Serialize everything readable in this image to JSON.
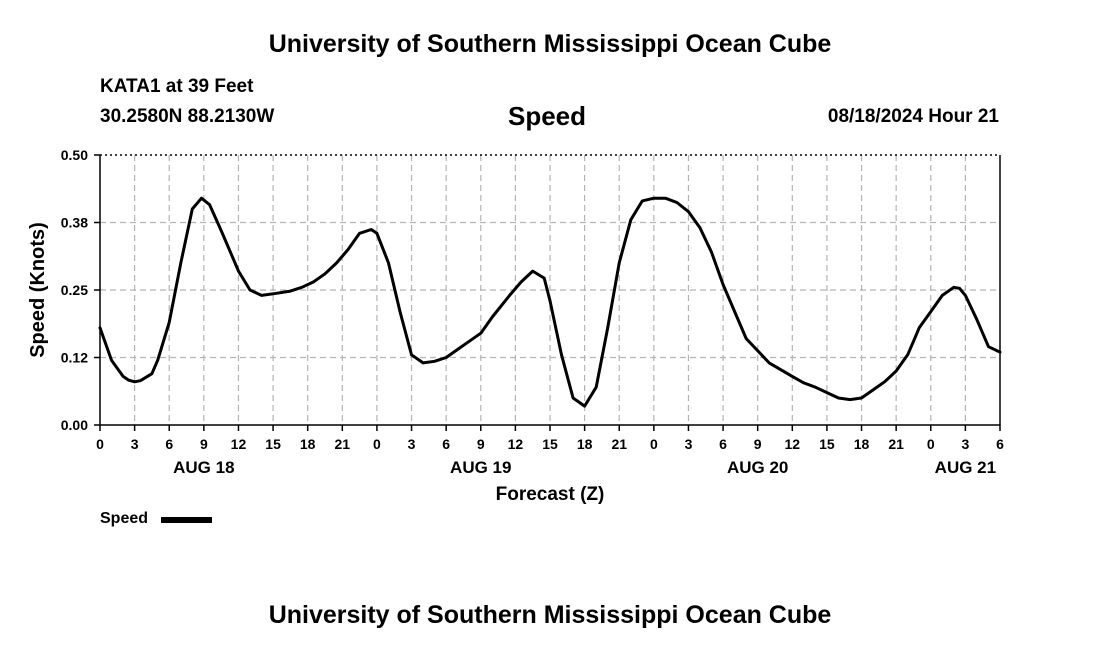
{
  "header": {
    "title_top": "University of Southern Mississippi Ocean Cube",
    "title_bottom": "University of Southern Mississippi Ocean Cube",
    "station": "KATA1 at 39 Feet",
    "location": "30.2580N  88.2130W",
    "variable": "Speed",
    "datetime": "08/18/2024 Hour 21"
  },
  "legend": {
    "label": "Speed",
    "color": "#000000"
  },
  "chart_data": {
    "type": "line",
    "title": "Speed",
    "xlabel": "Forecast (Z)",
    "ylabel": "Speed (Knots)",
    "x_unit": "hours since AUG 18 00Z",
    "xlim": [
      0,
      78
    ],
    "ylim": [
      0,
      0.5
    ],
    "y_ticks": [
      0.0,
      0.125,
      0.25,
      0.375,
      0.5
    ],
    "y_tick_labels": [
      "0.00",
      "0.12",
      "0.25",
      "0.38",
      "0.50"
    ],
    "x_ticks": [
      0,
      3,
      6,
      9,
      12,
      15,
      18,
      21,
      24,
      27,
      30,
      33,
      36,
      39,
      42,
      45,
      48,
      51,
      54,
      57,
      60,
      63,
      66,
      69,
      72,
      75,
      78
    ],
    "x_tick_labels": [
      "0",
      "3",
      "6",
      "9",
      "12",
      "15",
      "18",
      "21",
      "0",
      "3",
      "6",
      "9",
      "12",
      "15",
      "18",
      "21",
      "0",
      "3",
      "6",
      "9",
      "12",
      "15",
      "18",
      "21",
      "0",
      "3",
      "6"
    ],
    "date_labels": [
      {
        "hour": 9,
        "label": "AUG 18"
      },
      {
        "hour": 33,
        "label": "AUG 19"
      },
      {
        "hour": 57,
        "label": "AUG 20"
      },
      {
        "hour": 75,
        "label": "AUG 21"
      }
    ],
    "grid": true,
    "series": [
      {
        "name": "Speed",
        "x": [
          0,
          1,
          2,
          2.5,
          3,
          3.5,
          4.5,
          5,
          6,
          7,
          8,
          8.8,
          9.5,
          10.5,
          12,
          13,
          14,
          15,
          16.5,
          17.5,
          18.5,
          19.5,
          20.5,
          21.5,
          22,
          22.5,
          23.5,
          24,
          25,
          26,
          27,
          28,
          29,
          30,
          31,
          32,
          33,
          34,
          35.5,
          36.5,
          37.5,
          38.5,
          39,
          40,
          41,
          42,
          43,
          44,
          45,
          46,
          47,
          48,
          49,
          50,
          51,
          52,
          53,
          54,
          56,
          58,
          60,
          61,
          62,
          63,
          64,
          65,
          66,
          67,
          68,
          69,
          69.5,
          70,
          70.5,
          71,
          72,
          73,
          74,
          74.5,
          75,
          76,
          77,
          78
        ],
        "values": [
          0.18,
          0.12,
          0.09,
          0.083,
          0.08,
          0.082,
          0.095,
          0.12,
          0.19,
          0.3,
          0.4,
          0.42,
          0.408,
          0.36,
          0.285,
          0.25,
          0.24,
          0.243,
          0.248,
          0.255,
          0.265,
          0.28,
          0.3,
          0.325,
          0.34,
          0.355,
          0.362,
          0.355,
          0.3,
          0.21,
          0.13,
          0.115,
          0.118,
          0.125,
          0.14,
          0.155,
          0.17,
          0.2,
          0.24,
          0.265,
          0.285,
          0.272,
          0.23,
          0.13,
          0.05,
          0.035,
          0.07,
          0.18,
          0.3,
          0.38,
          0.415,
          0.42,
          0.42,
          0.412,
          0.395,
          0.365,
          0.32,
          0.26,
          0.16,
          0.115,
          0.09,
          0.078,
          0.07,
          0.06,
          0.05,
          0.047,
          0.05,
          0.065,
          0.08,
          0.1,
          0.115,
          0.13,
          0.155,
          0.18,
          0.21,
          0.24,
          0.255,
          0.253,
          0.24,
          0.195,
          0.145,
          0.135
        ]
      }
    ]
  }
}
